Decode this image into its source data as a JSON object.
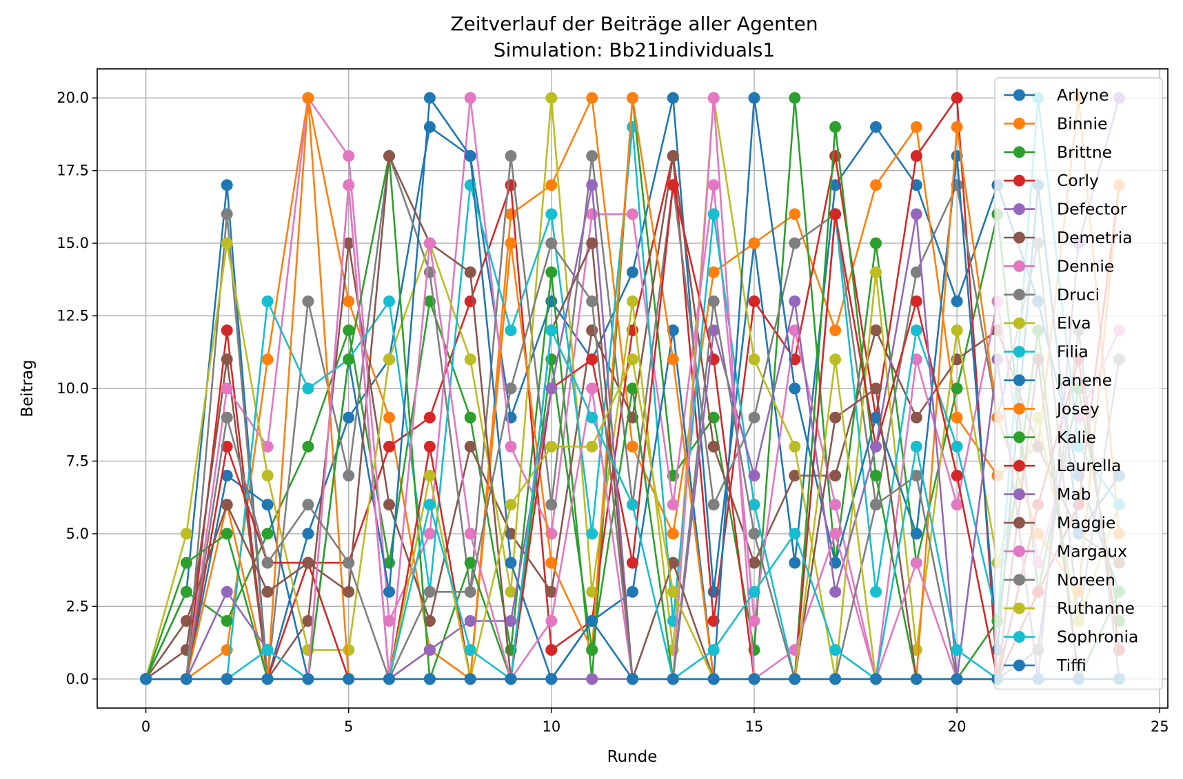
{
  "chart_data": {
    "type": "line",
    "title": "Zeitverlauf der Beiträge aller Agenten",
    "subtitle": "Simulation: Bb21individuals1",
    "xlabel": "Runde",
    "ylabel": "Beitrag",
    "xlim": [
      -1.2,
      25.2
    ],
    "ylim": [
      -1.0,
      21.0
    ],
    "x_ticks": [
      0,
      5,
      10,
      15,
      20,
      25
    ],
    "x_tick_labels": [
      "0",
      "5",
      "10",
      "15",
      "20",
      "25"
    ],
    "y_ticks": [
      0,
      2.5,
      5,
      7.5,
      10,
      12.5,
      15,
      17.5,
      20
    ],
    "y_tick_labels": [
      "0.0",
      "2.5",
      "5.0",
      "7.5",
      "10.0",
      "12.5",
      "15.0",
      "17.5",
      "20.0"
    ],
    "grid": true,
    "legend_position": "upper-right",
    "x": [
      0,
      1,
      2,
      3,
      4,
      5,
      6,
      7,
      8,
      9,
      10,
      11,
      12,
      13,
      14,
      15,
      16,
      17,
      18,
      19,
      20,
      21,
      22,
      23,
      24
    ],
    "series": [
      {
        "name": "Arlyne",
        "color": "#1f77b4",
        "values": [
          0,
          3,
          17,
          0,
          5,
          9,
          11,
          19,
          18,
          9,
          13,
          11,
          14,
          20,
          3,
          15,
          4,
          17,
          19,
          17,
          13,
          17,
          13,
          7,
          3
        ]
      },
      {
        "name": "Binnie",
        "color": "#ff7f0e",
        "values": [
          0,
          0,
          1,
          11,
          20,
          13,
          9,
          1,
          0,
          16,
          17,
          20,
          8,
          5,
          14,
          15,
          16,
          12,
          17,
          19,
          9,
          7,
          8,
          20,
          5
        ]
      },
      {
        "name": "Brittne",
        "color": "#2ca02c",
        "values": [
          0,
          3,
          2,
          5,
          8,
          12,
          4,
          13,
          9,
          1,
          14,
          0,
          20,
          7,
          9,
          1,
          20,
          4,
          15,
          4,
          10,
          16,
          3,
          10,
          2
        ]
      },
      {
        "name": "Corly",
        "color": "#d62728",
        "values": [
          0,
          0,
          12,
          0,
          4,
          4,
          8,
          9,
          13,
          17,
          1,
          2,
          12,
          18,
          2,
          13,
          11,
          18,
          9,
          18,
          20,
          0,
          3,
          6,
          17
        ]
      },
      {
        "name": "Defector",
        "color": "#9467bd",
        "values": [
          0,
          0,
          0,
          0,
          0,
          0,
          0,
          0,
          0,
          0,
          0,
          0,
          0,
          0,
          0,
          0,
          0,
          0,
          0,
          0,
          0,
          0,
          0,
          0,
          0
        ]
      },
      {
        "name": "Demetria",
        "color": "#8c564b",
        "values": [
          0,
          1,
          11,
          0,
          2,
          15,
          6,
          2,
          8,
          5,
          3,
          12,
          9,
          18,
          8,
          4,
          7,
          7,
          12,
          9,
          11,
          12,
          8,
          5,
          4
        ]
      },
      {
        "name": "Dennie",
        "color": "#e377c2",
        "values": [
          0,
          0,
          10,
          8,
          20,
          18,
          2,
          5,
          20,
          8,
          5,
          16,
          16,
          6,
          17,
          2,
          12,
          6,
          0,
          11,
          6,
          13,
          4,
          9,
          12
        ]
      },
      {
        "name": "Druci",
        "color": "#7f7f7f",
        "values": [
          0,
          0,
          16,
          0,
          13,
          7,
          18,
          14,
          3,
          18,
          6,
          18,
          6,
          17,
          6,
          9,
          15,
          16,
          6,
          14,
          17,
          9,
          15,
          2,
          11
        ]
      },
      {
        "name": "Elva",
        "color": "#bcbd22",
        "values": [
          0,
          5,
          15,
          7,
          1,
          1,
          11,
          15,
          11,
          3,
          20,
          3,
          13,
          1,
          20,
          11,
          8,
          0,
          14,
          1,
          12,
          4,
          9,
          2,
          6
        ]
      },
      {
        "name": "Filia",
        "color": "#17becf",
        "values": [
          0,
          0,
          0,
          13,
          10,
          11,
          13,
          3,
          17,
          12,
          16,
          5,
          19,
          2,
          16,
          6,
          0,
          16,
          3,
          12,
          8,
          2,
          20,
          8,
          6
        ]
      },
      {
        "name": "Janene",
        "color": "#1f77b4",
        "values": [
          0,
          0,
          7,
          6,
          0,
          11,
          3,
          20,
          18,
          4,
          0,
          2,
          3,
          12,
          0,
          20,
          10,
          4,
          9,
          5,
          18,
          1,
          17,
          5,
          7
        ]
      },
      {
        "name": "Josey",
        "color": "#ff7f0e",
        "values": [
          0,
          0,
          6,
          0,
          20,
          0,
          0,
          1,
          0,
          15,
          4,
          1,
          20,
          11,
          0,
          0,
          0,
          0,
          0,
          0,
          19,
          9,
          5,
          3,
          17
        ]
      },
      {
        "name": "Kalie",
        "color": "#2ca02c",
        "values": [
          0,
          4,
          5,
          0,
          0,
          11,
          18,
          0,
          4,
          0,
          11,
          1,
          10,
          0,
          0,
          0,
          0,
          19,
          7,
          0,
          0,
          2,
          12,
          0,
          3
        ]
      },
      {
        "name": "Laurella",
        "color": "#d62728",
        "values": [
          0,
          0,
          8,
          4,
          4,
          0,
          0,
          8,
          0,
          0,
          10,
          11,
          4,
          17,
          11,
          0,
          0,
          16,
          8,
          13,
          7,
          0,
          6,
          11,
          1
        ]
      },
      {
        "name": "Mab",
        "color": "#9467bd",
        "values": [
          0,
          0,
          3,
          1,
          0,
          17,
          0,
          1,
          2,
          2,
          10,
          17,
          0,
          0,
          12,
          7,
          13,
          3,
          8,
          16,
          0,
          11,
          0,
          15,
          20
        ]
      },
      {
        "name": "Maggie",
        "color": "#8c564b",
        "values": [
          0,
          2,
          6,
          3,
          4,
          3,
          18,
          15,
          14,
          0,
          12,
          15,
          0,
          4,
          0,
          0,
          0,
          9,
          10,
          0,
          0,
          0,
          11,
          0,
          0
        ]
      },
      {
        "name": "Margaux",
        "color": "#e377c2",
        "values": [
          0,
          0,
          0,
          0,
          0,
          17,
          0,
          15,
          5,
          0,
          2,
          10,
          0,
          0,
          20,
          0,
          1,
          5,
          0,
          4,
          0,
          0,
          0,
          0,
          0
        ]
      },
      {
        "name": "Noreen",
        "color": "#7f7f7f",
        "values": [
          0,
          0,
          9,
          4,
          6,
          4,
          0,
          3,
          3,
          10,
          15,
          13,
          0,
          0,
          13,
          5,
          0,
          0,
          6,
          7,
          0,
          0,
          1,
          12,
          0
        ]
      },
      {
        "name": "Ruthanne",
        "color": "#bcbd22",
        "values": [
          0,
          0,
          0,
          0,
          0,
          0,
          0,
          7,
          0,
          6,
          8,
          8,
          11,
          3,
          0,
          0,
          0,
          11,
          0,
          0,
          0,
          0,
          0,
          0,
          0
        ]
      },
      {
        "name": "Sophronia",
        "color": "#17becf",
        "values": [
          0,
          0,
          0,
          1,
          0,
          0,
          0,
          6,
          1,
          0,
          12,
          9,
          6,
          0,
          1,
          3,
          5,
          1,
          0,
          8,
          1,
          0,
          0,
          0,
          0
        ]
      },
      {
        "name": "Tiffi",
        "color": "#1f77b4",
        "values": [
          0,
          0,
          0,
          0,
          0,
          0,
          0,
          0,
          0,
          0,
          0,
          2,
          0,
          0,
          0,
          0,
          0,
          0,
          0,
          0,
          0,
          0,
          0,
          0,
          0
        ]
      }
    ]
  }
}
